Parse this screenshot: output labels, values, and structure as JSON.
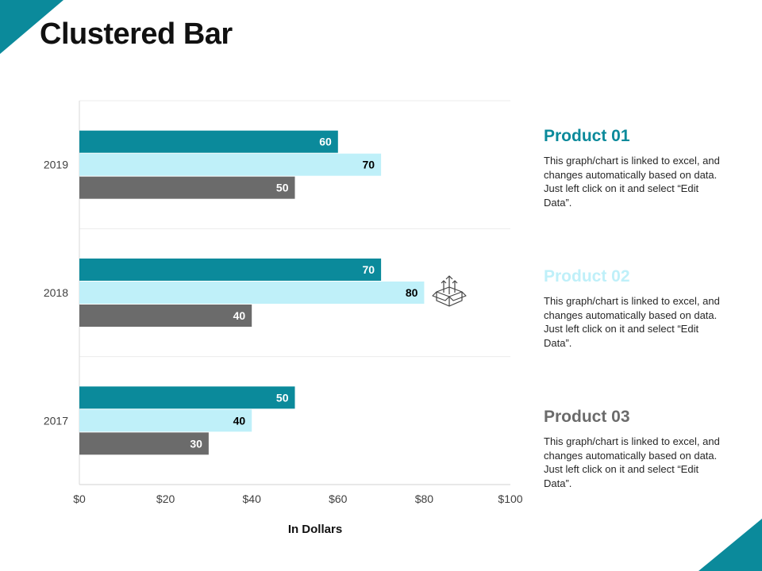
{
  "title": "Clustered Bar",
  "chart_data": {
    "type": "bar",
    "orientation": "horizontal",
    "categories": [
      "2019",
      "2018",
      "2017"
    ],
    "series": [
      {
        "name": "Product 01",
        "color": "#0b8a9b",
        "values": [
          60,
          70,
          50
        ],
        "label_color": "#ffffff"
      },
      {
        "name": "Product 02",
        "color": "#bff0f9",
        "values": [
          70,
          80,
          40
        ],
        "label_color": "#000000"
      },
      {
        "name": "Product 03",
        "color": "#6b6b6b",
        "values": [
          50,
          40,
          30
        ],
        "label_color": "#ffffff"
      }
    ],
    "xlim": [
      0,
      100
    ],
    "xticks": [
      "$0",
      "$20",
      "$40",
      "$60",
      "$80",
      "$100"
    ],
    "xlabel": "In Dollars",
    "ylabel": "",
    "grid": true,
    "legend": "right"
  },
  "legend": [
    {
      "title": "Product 01",
      "color": "#0b8a9b",
      "desc": "This graph/chart is linked to excel, and changes automatically based on data. Just left click on it and select “Edit Data”."
    },
    {
      "title": "Product 02",
      "color": "#bff0f9",
      "desc": "This graph/chart is linked to excel, and changes automatically based on data. Just left click on it and select “Edit Data”."
    },
    {
      "title": "Product 03",
      "color": "#6b6b6b",
      "desc": "This graph/chart is linked to excel, and changes automatically based on data. Just left click on it and select “Edit Data”."
    }
  ],
  "icon": "box-arrows-icon"
}
